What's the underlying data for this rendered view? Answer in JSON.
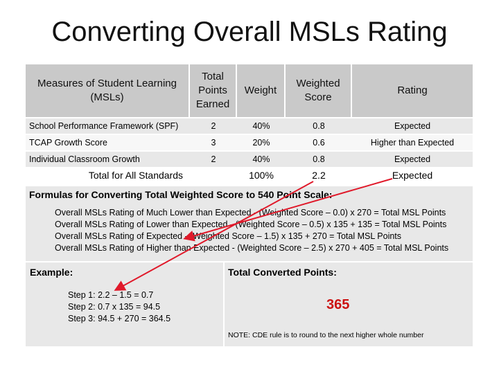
{
  "title": "Converting Overall MSLs Rating",
  "table": {
    "headers": [
      "Measures of Student Learning (MSLs)",
      "Total Points Earned",
      "Weight",
      "Weighted Score",
      "Rating"
    ],
    "rows": [
      {
        "measure": "School Performance Framework (SPF)",
        "points": "2",
        "weight": "40%",
        "weighted": "0.8",
        "rating": "Expected"
      },
      {
        "measure": "TCAP Growth Score",
        "points": "3",
        "weight": "20%",
        "weighted": "0.6",
        "rating": "Higher than Expected"
      },
      {
        "measure": "Individual Classroom Growth",
        "points": "2",
        "weight": "40%",
        "weighted": "0.8",
        "rating": "Expected"
      }
    ],
    "total": {
      "label": "Total for All Standards",
      "weight": "100%",
      "weighted": "2.2",
      "rating": "Expected"
    }
  },
  "formulas": {
    "heading": "Formulas for Converting Total Weighted Score to 540 Point Scale:",
    "lines": [
      "Overall MSLs Rating of Much Lower than Expected - (Weighted Score – 0.0) x 270 = Total MSL Points",
      "Overall MSLs Rating of Lower than Expected - (Weighted Score – 0.5) x 135 + 135 = Total MSL Points",
      "Overall MSLs Rating of Expected - (Weighted Score – 1.5) x 135 + 270 = Total MSL Points",
      "Overall MSLs Rating of Higher than Expected - (Weighted Score – 2.5) x 270 + 405 = Total MSL Points"
    ]
  },
  "example": {
    "label": "Example:",
    "steps": [
      "Step 1:  2.2 – 1.5 = 0.7",
      "Step 2:  0.7 x 135 = 94.5",
      "Step 3:  94.5 + 270 = 364.5"
    ]
  },
  "converted": {
    "label": "Total Converted Points:",
    "value": "365",
    "note": "NOTE:  CDE rule is to round to the next higher whole number"
  },
  "colors": {
    "arrow": "#e0192a",
    "value": "#cc1111",
    "header_bg": "#c9c9c9",
    "panel_bg": "#e8e8e8"
  }
}
